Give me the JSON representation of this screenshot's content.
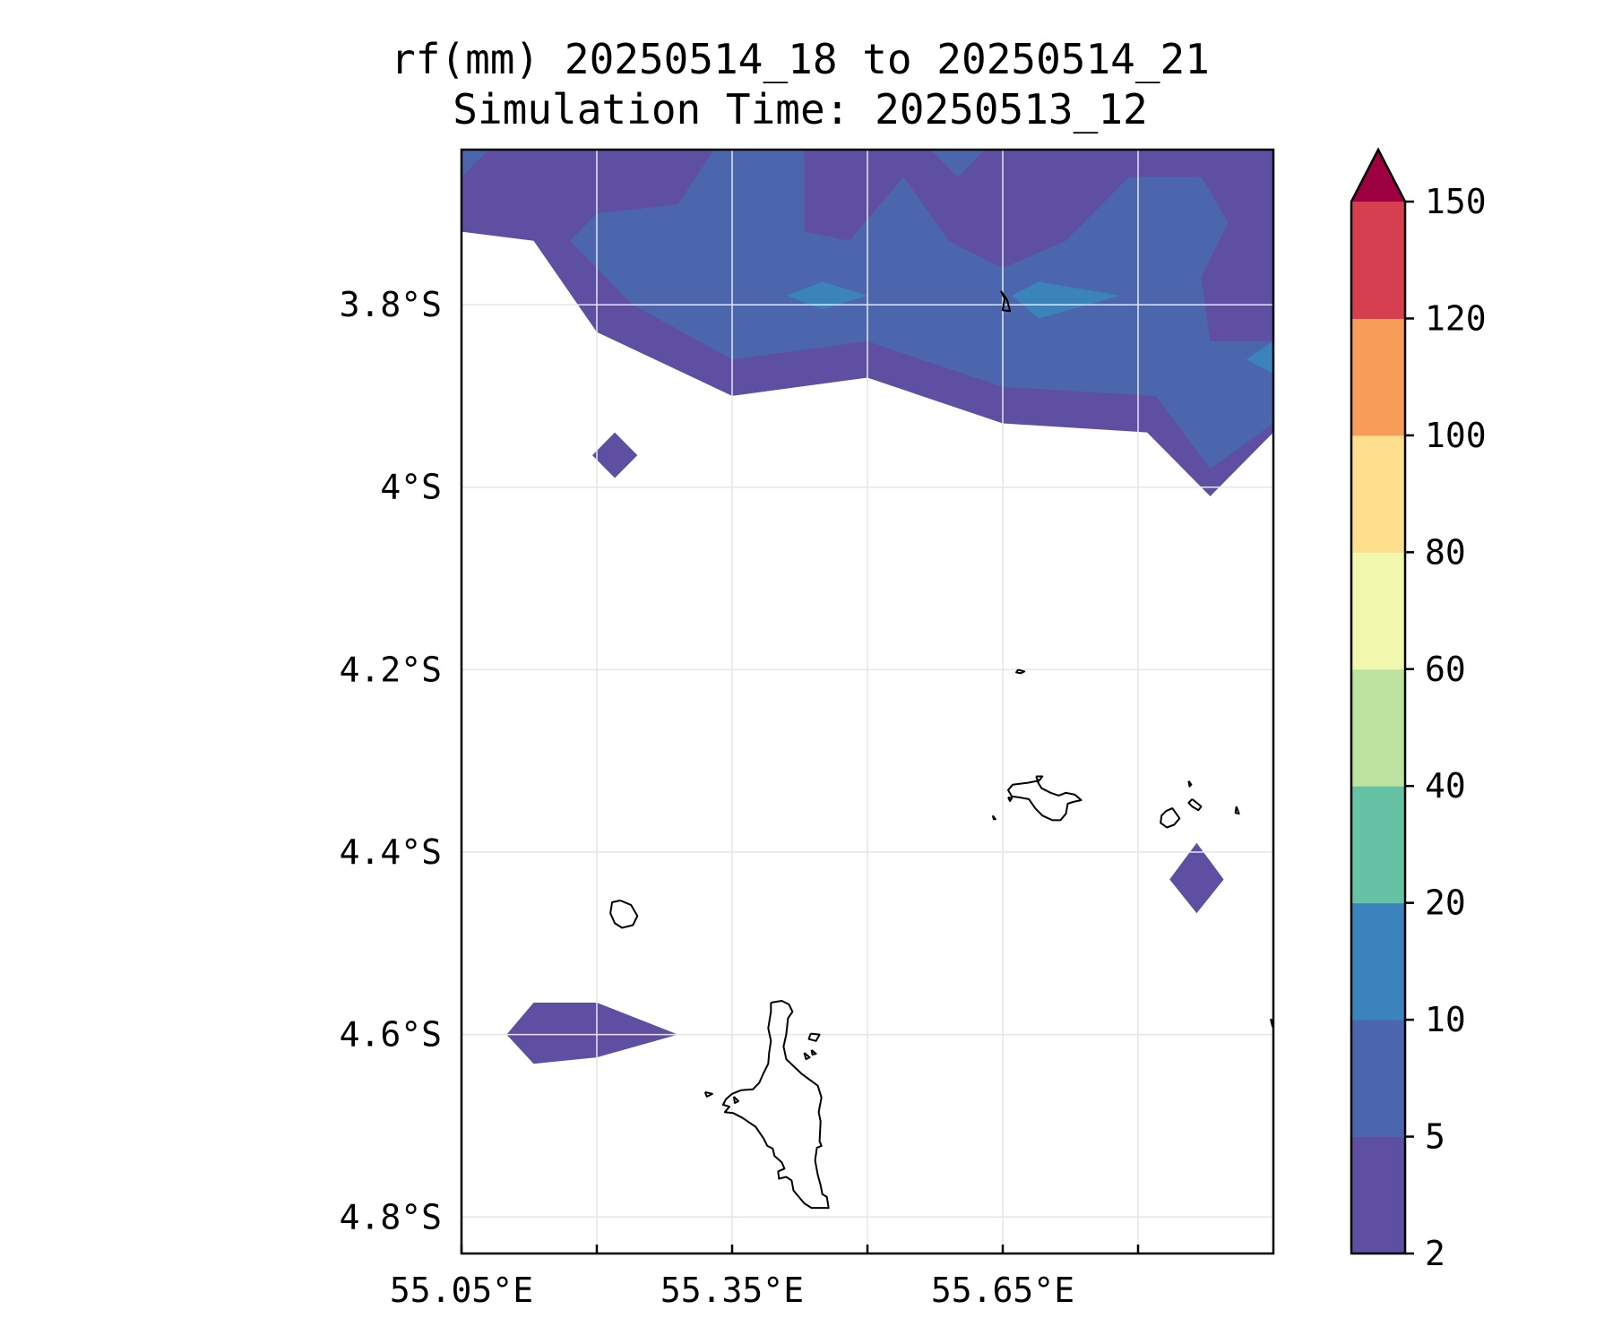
{
  "title": {
    "line1": "rf(mm) 20250514_18 to 20250514_21",
    "line2": "Simulation Time: 20250513_12"
  },
  "map": {
    "lon_range": [
      55.05,
      55.95
    ],
    "lat_range": [
      -4.84,
      -3.63
    ],
    "x_tick_values": [
      55.05,
      55.2,
      55.35,
      55.5,
      55.65,
      55.8
    ],
    "x_tick_labels": [
      {
        "value": 55.05,
        "label": "55.05°E"
      },
      {
        "value": 55.35,
        "label": "55.35°E"
      },
      {
        "value": 55.65,
        "label": "55.65°E"
      }
    ],
    "y_tick_labels": [
      {
        "value": -3.8,
        "label": "3.8°S"
      },
      {
        "value": -4.0,
        "label": "4°S"
      },
      {
        "value": -4.2,
        "label": "4.2°S"
      },
      {
        "value": -4.4,
        "label": "4.4°S"
      },
      {
        "value": -4.6,
        "label": "4.6°S"
      },
      {
        "value": -4.8,
        "label": "4.8°S"
      }
    ],
    "grid": true
  },
  "colorbar": {
    "levels": [
      "2",
      "5",
      "10",
      "20",
      "40",
      "60",
      "80",
      "100",
      "120",
      "150"
    ],
    "colors": [
      "#5e4fa2",
      "#4c66ae",
      "#3a84bb",
      "#66c2a5",
      "#bde3a0",
      "#f2f8ae",
      "#fddf8e",
      "#f89d59",
      "#d63f4f",
      "#9e0142"
    ],
    "extend": "max"
  },
  "rain_areas": [
    {
      "level": "2-5",
      "color": "#5e4fa2",
      "points": [
        [
          55.05,
          -3.63
        ],
        [
          55.95,
          -3.63
        ],
        [
          55.95,
          -3.94
        ],
        [
          55.88,
          -4.01
        ],
        [
          55.81,
          -3.94
        ],
        [
          55.65,
          -3.93
        ],
        [
          55.5,
          -3.88
        ],
        [
          55.35,
          -3.9
        ],
        [
          55.2,
          -3.83
        ],
        [
          55.13,
          -3.73
        ],
        [
          55.05,
          -3.72
        ]
      ]
    },
    {
      "level": "2-5",
      "color": "#5e4fa2",
      "points": [
        [
          55.22,
          -3.94
        ],
        [
          55.245,
          -3.965
        ],
        [
          55.22,
          -3.99
        ],
        [
          55.195,
          -3.965
        ]
      ]
    },
    {
      "level": "2-5",
      "color": "#5e4fa2",
      "points": [
        [
          55.1,
          -4.6
        ],
        [
          55.13,
          -4.565
        ],
        [
          55.2,
          -4.565
        ],
        [
          55.29,
          -4.6
        ],
        [
          55.2,
          -4.625
        ],
        [
          55.13,
          -4.632
        ]
      ]
    },
    {
      "level": "2-5",
      "color": "#5e4fa2",
      "points": [
        [
          55.865,
          -4.39
        ],
        [
          55.895,
          -4.43
        ],
        [
          55.865,
          -4.467
        ],
        [
          55.835,
          -4.43
        ]
      ]
    },
    {
      "level": "5-10",
      "color": "#4c66ae",
      "points": [
        [
          55.05,
          -3.63
        ],
        [
          55.08,
          -3.63
        ],
        [
          55.05,
          -3.66
        ]
      ]
    },
    {
      "level": "5-10",
      "color": "#4c66ae",
      "points": [
        [
          55.33,
          -3.63
        ],
        [
          55.43,
          -3.63
        ],
        [
          55.43,
          -3.72
        ],
        [
          55.48,
          -3.73
        ],
        [
          55.54,
          -3.66
        ],
        [
          55.59,
          -3.73
        ],
        [
          55.65,
          -3.76
        ],
        [
          55.72,
          -3.73
        ],
        [
          55.79,
          -3.66
        ],
        [
          55.87,
          -3.66
        ],
        [
          55.9,
          -3.71
        ],
        [
          55.87,
          -3.77
        ],
        [
          55.88,
          -3.84
        ],
        [
          55.95,
          -3.84
        ],
        [
          55.95,
          -3.93
        ],
        [
          55.88,
          -3.98
        ],
        [
          55.82,
          -3.9
        ],
        [
          55.65,
          -3.89
        ],
        [
          55.5,
          -3.84
        ],
        [
          55.35,
          -3.86
        ],
        [
          55.24,
          -3.8
        ],
        [
          55.17,
          -3.73
        ],
        [
          55.2,
          -3.7
        ],
        [
          55.29,
          -3.69
        ]
      ]
    },
    {
      "level": "5-10",
      "color": "#4c66ae",
      "points": [
        [
          55.57,
          -3.63
        ],
        [
          55.63,
          -3.63
        ],
        [
          55.6,
          -3.66
        ]
      ]
    },
    {
      "level": "10-20",
      "color": "#3a84bb",
      "points": [
        [
          55.41,
          -3.79
        ],
        [
          55.45,
          -3.775
        ],
        [
          55.5,
          -3.79
        ],
        [
          55.45,
          -3.805
        ]
      ]
    },
    {
      "level": "10-20",
      "color": "#3a84bb",
      "points": [
        [
          55.66,
          -3.79
        ],
        [
          55.69,
          -3.775
        ],
        [
          55.78,
          -3.79
        ],
        [
          55.69,
          -3.815
        ]
      ]
    },
    {
      "level": "10-20",
      "color": "#3a84bb",
      "points": [
        [
          55.95,
          -3.84
        ],
        [
          55.95,
          -3.875
        ],
        [
          55.92,
          -3.86
        ]
      ]
    }
  ],
  "coastlines": [
    [
      [
        55.393,
        -4.565
      ],
      [
        55.405,
        -4.563
      ],
      [
        55.413,
        -4.567
      ],
      [
        55.417,
        -4.575
      ],
      [
        55.412,
        -4.582
      ],
      [
        55.41,
        -4.6
      ],
      [
        55.407,
        -4.613
      ],
      [
        55.41,
        -4.627
      ],
      [
        55.427,
        -4.643
      ],
      [
        55.445,
        -4.656
      ],
      [
        55.449,
        -4.669
      ],
      [
        55.446,
        -4.685
      ],
      [
        55.448,
        -4.695
      ],
      [
        55.447,
        -4.717
      ],
      [
        55.449,
        -4.722
      ],
      [
        55.444,
        -4.724
      ],
      [
        55.442,
        -4.738
      ],
      [
        55.445,
        -4.754
      ],
      [
        55.448,
        -4.765
      ],
      [
        55.45,
        -4.775
      ],
      [
        55.455,
        -4.778
      ],
      [
        55.457,
        -4.79
      ],
      [
        55.438,
        -4.79
      ],
      [
        55.43,
        -4.785
      ],
      [
        55.418,
        -4.771
      ],
      [
        55.416,
        -4.76
      ],
      [
        55.41,
        -4.756
      ],
      [
        55.402,
        -4.758
      ],
      [
        55.401,
        -4.75
      ],
      [
        55.408,
        -4.747
      ],
      [
        55.405,
        -4.74
      ],
      [
        55.397,
        -4.733
      ],
      [
        55.395,
        -4.725
      ],
      [
        55.389,
        -4.722
      ],
      [
        55.385,
        -4.714
      ],
      [
        55.376,
        -4.701
      ],
      [
        55.37,
        -4.697
      ],
      [
        55.361,
        -4.691
      ],
      [
        55.351,
        -4.686
      ],
      [
        55.342,
        -4.685
      ],
      [
        55.347,
        -4.679
      ],
      [
        55.34,
        -4.677
      ],
      [
        55.343,
        -4.671
      ],
      [
        55.35,
        -4.665
      ],
      [
        55.36,
        -4.661
      ],
      [
        55.373,
        -4.66
      ],
      [
        55.38,
        -4.653
      ],
      [
        55.385,
        -4.642
      ],
      [
        55.39,
        -4.632
      ],
      [
        55.391,
        -4.62
      ],
      [
        55.393,
        -4.607
      ],
      [
        55.39,
        -4.593
      ],
      [
        55.393,
        -4.575
      ],
      [
        55.393,
        -4.565
      ]
    ],
    [
      [
        55.226,
        -4.453
      ],
      [
        55.238,
        -4.458
      ],
      [
        55.245,
        -4.47
      ],
      [
        55.24,
        -4.48
      ],
      [
        55.228,
        -4.483
      ],
      [
        55.22,
        -4.478
      ],
      [
        55.215,
        -4.467
      ],
      [
        55.217,
        -4.455
      ],
      [
        55.226,
        -4.453
      ]
    ],
    [
      [
        55.678,
        -4.324
      ],
      [
        55.688,
        -4.322
      ],
      [
        55.693,
        -4.33
      ],
      [
        55.703,
        -4.335
      ],
      [
        55.712,
        -4.338
      ],
      [
        55.72,
        -4.335
      ],
      [
        55.73,
        -4.337
      ],
      [
        55.737,
        -4.343
      ],
      [
        55.728,
        -4.345
      ],
      [
        55.722,
        -4.347
      ],
      [
        55.72,
        -4.358
      ],
      [
        55.714,
        -4.365
      ],
      [
        55.705,
        -4.365
      ],
      [
        55.694,
        -4.36
      ],
      [
        55.686,
        -4.352
      ],
      [
        55.679,
        -4.342
      ],
      [
        55.668,
        -4.34
      ],
      [
        55.66,
        -4.339
      ],
      [
        55.656,
        -4.332
      ],
      [
        55.661,
        -4.326
      ],
      [
        55.67,
        -4.325
      ],
      [
        55.678,
        -4.324
      ]
    ],
    [
      [
        55.687,
        -4.317
      ],
      [
        55.694,
        -4.317
      ],
      [
        55.69,
        -4.322
      ],
      [
        55.688,
        -4.32
      ],
      [
        55.687,
        -4.317
      ]
    ],
    [
      [
        55.667,
        -4.2
      ],
      [
        55.674,
        -4.202
      ],
      [
        55.67,
        -4.204
      ],
      [
        55.665,
        -4.203
      ],
      [
        55.667,
        -4.2
      ]
    ],
    [
      [
        55.831,
        -4.355
      ],
      [
        55.838,
        -4.352
      ],
      [
        55.846,
        -4.363
      ],
      [
        55.84,
        -4.37
      ],
      [
        55.832,
        -4.373
      ],
      [
        55.825,
        -4.368
      ],
      [
        55.826,
        -4.36
      ],
      [
        55.831,
        -4.355
      ]
    ],
    [
      [
        55.86,
        -4.342
      ],
      [
        55.87,
        -4.35
      ],
      [
        55.867,
        -4.354
      ],
      [
        55.86,
        -4.35
      ],
      [
        55.856,
        -4.346
      ],
      [
        55.86,
        -4.342
      ]
    ],
    [
      [
        55.856,
        -4.322
      ],
      [
        55.859,
        -4.326
      ],
      [
        55.857,
        -4.328
      ],
      [
        55.856,
        -4.322
      ]
    ],
    [
      [
        55.909,
        -4.35
      ],
      [
        55.912,
        -4.358
      ],
      [
        55.908,
        -4.357
      ],
      [
        55.909,
        -4.35
      ]
    ],
    [
      [
        55.947,
        -4.583
      ],
      [
        55.953,
        -4.59
      ],
      [
        55.949,
        -4.591
      ],
      [
        55.947,
        -4.583
      ]
    ],
    [
      [
        55.437,
        -4.599
      ],
      [
        55.447,
        -4.6
      ],
      [
        55.443,
        -4.607
      ],
      [
        55.435,
        -4.605
      ],
      [
        55.437,
        -4.599
      ]
    ],
    [
      [
        55.438,
        -4.617
      ],
      [
        55.443,
        -4.621
      ],
      [
        55.439,
        -4.622
      ],
      [
        55.438,
        -4.617
      ]
    ],
    [
      [
        55.43,
        -4.62
      ],
      [
        55.436,
        -4.625
      ],
      [
        55.432,
        -4.627
      ],
      [
        55.43,
        -4.62
      ]
    ],
    [
      [
        55.32,
        -4.663
      ],
      [
        55.328,
        -4.665
      ],
      [
        55.322,
        -4.668
      ],
      [
        55.32,
        -4.663
      ]
    ],
    [
      [
        55.352,
        -4.668
      ],
      [
        55.357,
        -4.673
      ],
      [
        55.353,
        -4.675
      ],
      [
        55.352,
        -4.668
      ]
    ],
    [
      [
        55.656,
        -4.34
      ],
      [
        55.66,
        -4.341
      ],
      [
        55.658,
        -4.344
      ],
      [
        55.656,
        -4.34
      ]
    ],
    [
      [
        55.639,
        -4.36
      ],
      [
        55.642,
        -4.364
      ],
      [
        55.64,
        -4.364
      ],
      [
        55.639,
        -4.36
      ]
    ],
    [
      [
        55.648,
        -3.785
      ],
      [
        55.652,
        -3.793
      ],
      [
        55.65,
        -3.806
      ],
      [
        55.658,
        -3.807
      ],
      [
        55.655,
        -3.795
      ],
      [
        55.648,
        -3.785
      ]
    ]
  ]
}
